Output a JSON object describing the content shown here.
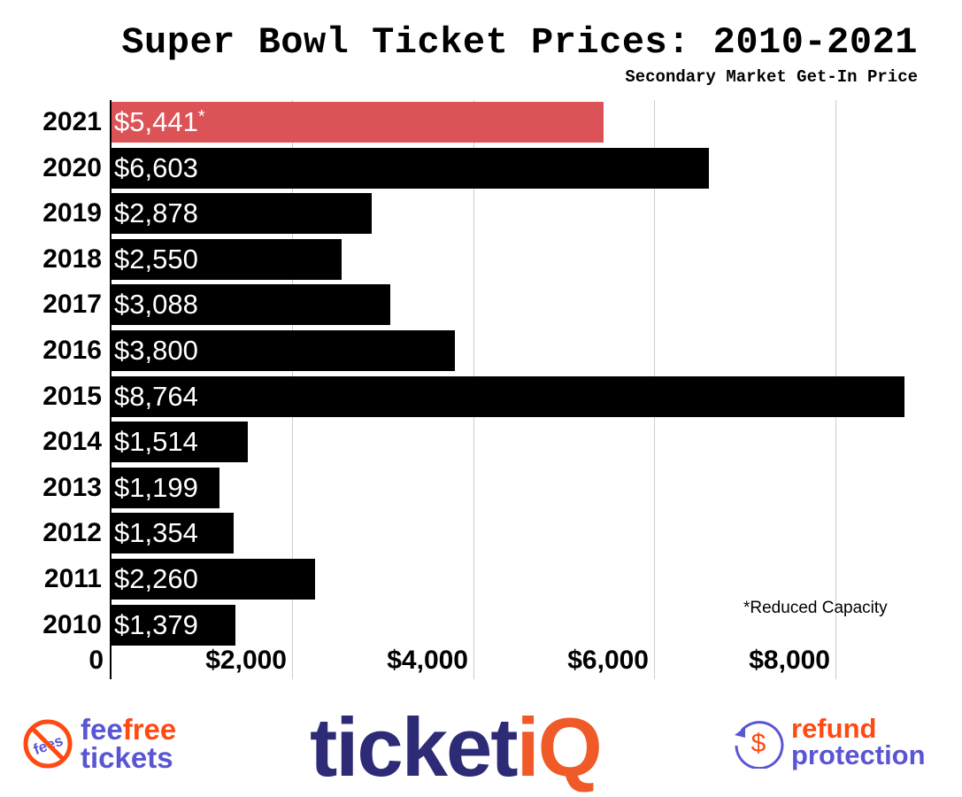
{
  "header": {
    "title": "Super Bowl Ticket Prices: 2010-2021",
    "subtitle": "Secondary Market Get-In Price"
  },
  "chart_data": {
    "type": "bar",
    "orientation": "horizontal",
    "title": "Super Bowl Ticket Prices: 2010-2021",
    "subtitle": "Secondary Market Get-In Price",
    "xlabel": "",
    "ylabel": "",
    "categories": [
      "2021",
      "2020",
      "2019",
      "2018",
      "2017",
      "2016",
      "2015",
      "2014",
      "2013",
      "2012",
      "2011",
      "2010"
    ],
    "values": [
      5441,
      6603,
      2878,
      2550,
      3088,
      3800,
      8764,
      1514,
      1199,
      1354,
      2260,
      1379
    ],
    "value_labels": [
      "$5,441",
      "$6,603",
      "$2,878",
      "$2,550",
      "$3,088",
      "$3,800",
      "$8,764",
      "$1,514",
      "$1,199",
      "$1,354",
      "$2,260",
      "$1,379"
    ],
    "highlight": {
      "category": "2021",
      "color": "#dc5357",
      "marker": "*"
    },
    "bar_color": "#000000",
    "xlim": [
      0,
      9000
    ],
    "xticks": [
      0,
      2000,
      4000,
      6000,
      8000
    ],
    "xtick_labels": [
      "0",
      "$2,000",
      "$4,000",
      "$6,000",
      "$8,000"
    ],
    "grid": "vertical",
    "annotations": [
      "*Reduced Capacity"
    ]
  },
  "note": "*Reduced Capacity",
  "footer": {
    "feefree": {
      "line1_a": "fee",
      "line1_b": "free",
      "line2": "tickets",
      "badge_text": "fees"
    },
    "ticketiq": {
      "part1": "ticket",
      "part2": "iQ"
    },
    "refund": {
      "line1": "refund",
      "line2": "protection",
      "icon_glyph": "$"
    }
  }
}
